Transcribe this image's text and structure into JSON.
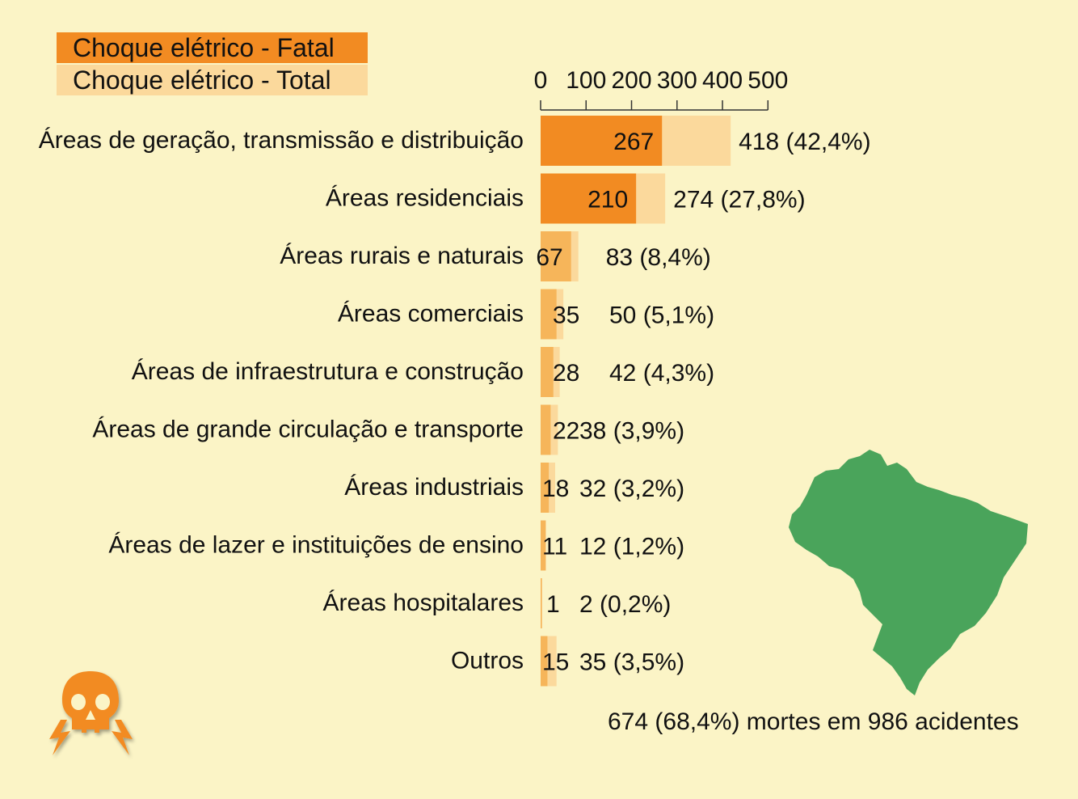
{
  "colors": {
    "background": "#fbf4c6",
    "fatal_dark": "#f28b22",
    "fatal_light": "#f6b55a",
    "total": "#fbd99c",
    "map": "#4aa45b"
  },
  "icons": [
    "skull-lightning-icon",
    "brazil-map-icon"
  ],
  "legend": {
    "fatal_label": "Choque elétrico - Fatal",
    "total_label": "Choque elétrico - Total"
  },
  "footer": {
    "note": "674 (68,4%) mortes em 986 acidentes"
  },
  "chart_data": {
    "type": "bar",
    "orientation": "horizontal",
    "xlim": [
      0,
      500
    ],
    "ticks": [
      0,
      100,
      200,
      300,
      400,
      500
    ],
    "legend_position": "top-left",
    "grid": false,
    "categories": [
      "Áreas de geração, transmissão e distribuição",
      "Áreas residenciais",
      "Áreas rurais e naturais",
      "Áreas comerciais",
      "Áreas de infraestrutura e construção",
      "Áreas de grande circulação e transporte",
      "Áreas industriais",
      "Áreas de lazer e instituições de ensino",
      "Áreas hospitalares",
      "Outros"
    ],
    "series": [
      {
        "name": "Choque elétrico - Fatal",
        "values": [
          267,
          210,
          67,
          35,
          28,
          22,
          18,
          11,
          1,
          15
        ]
      },
      {
        "name": "Choque elétrico - Total",
        "values": [
          418,
          274,
          83,
          50,
          42,
          38,
          32,
          12,
          2,
          35
        ]
      }
    ],
    "total_labels": [
      "418 (42,4%)",
      "274 (27,8%)",
      "83 (8,4%)",
      "50 (5,1%)",
      "42 (4,3%)",
      "38 (3,9%)",
      "32 (3,2%)",
      "12 (1,2%)",
      "2 (0,2%)",
      "35 (3,5%)"
    ]
  }
}
